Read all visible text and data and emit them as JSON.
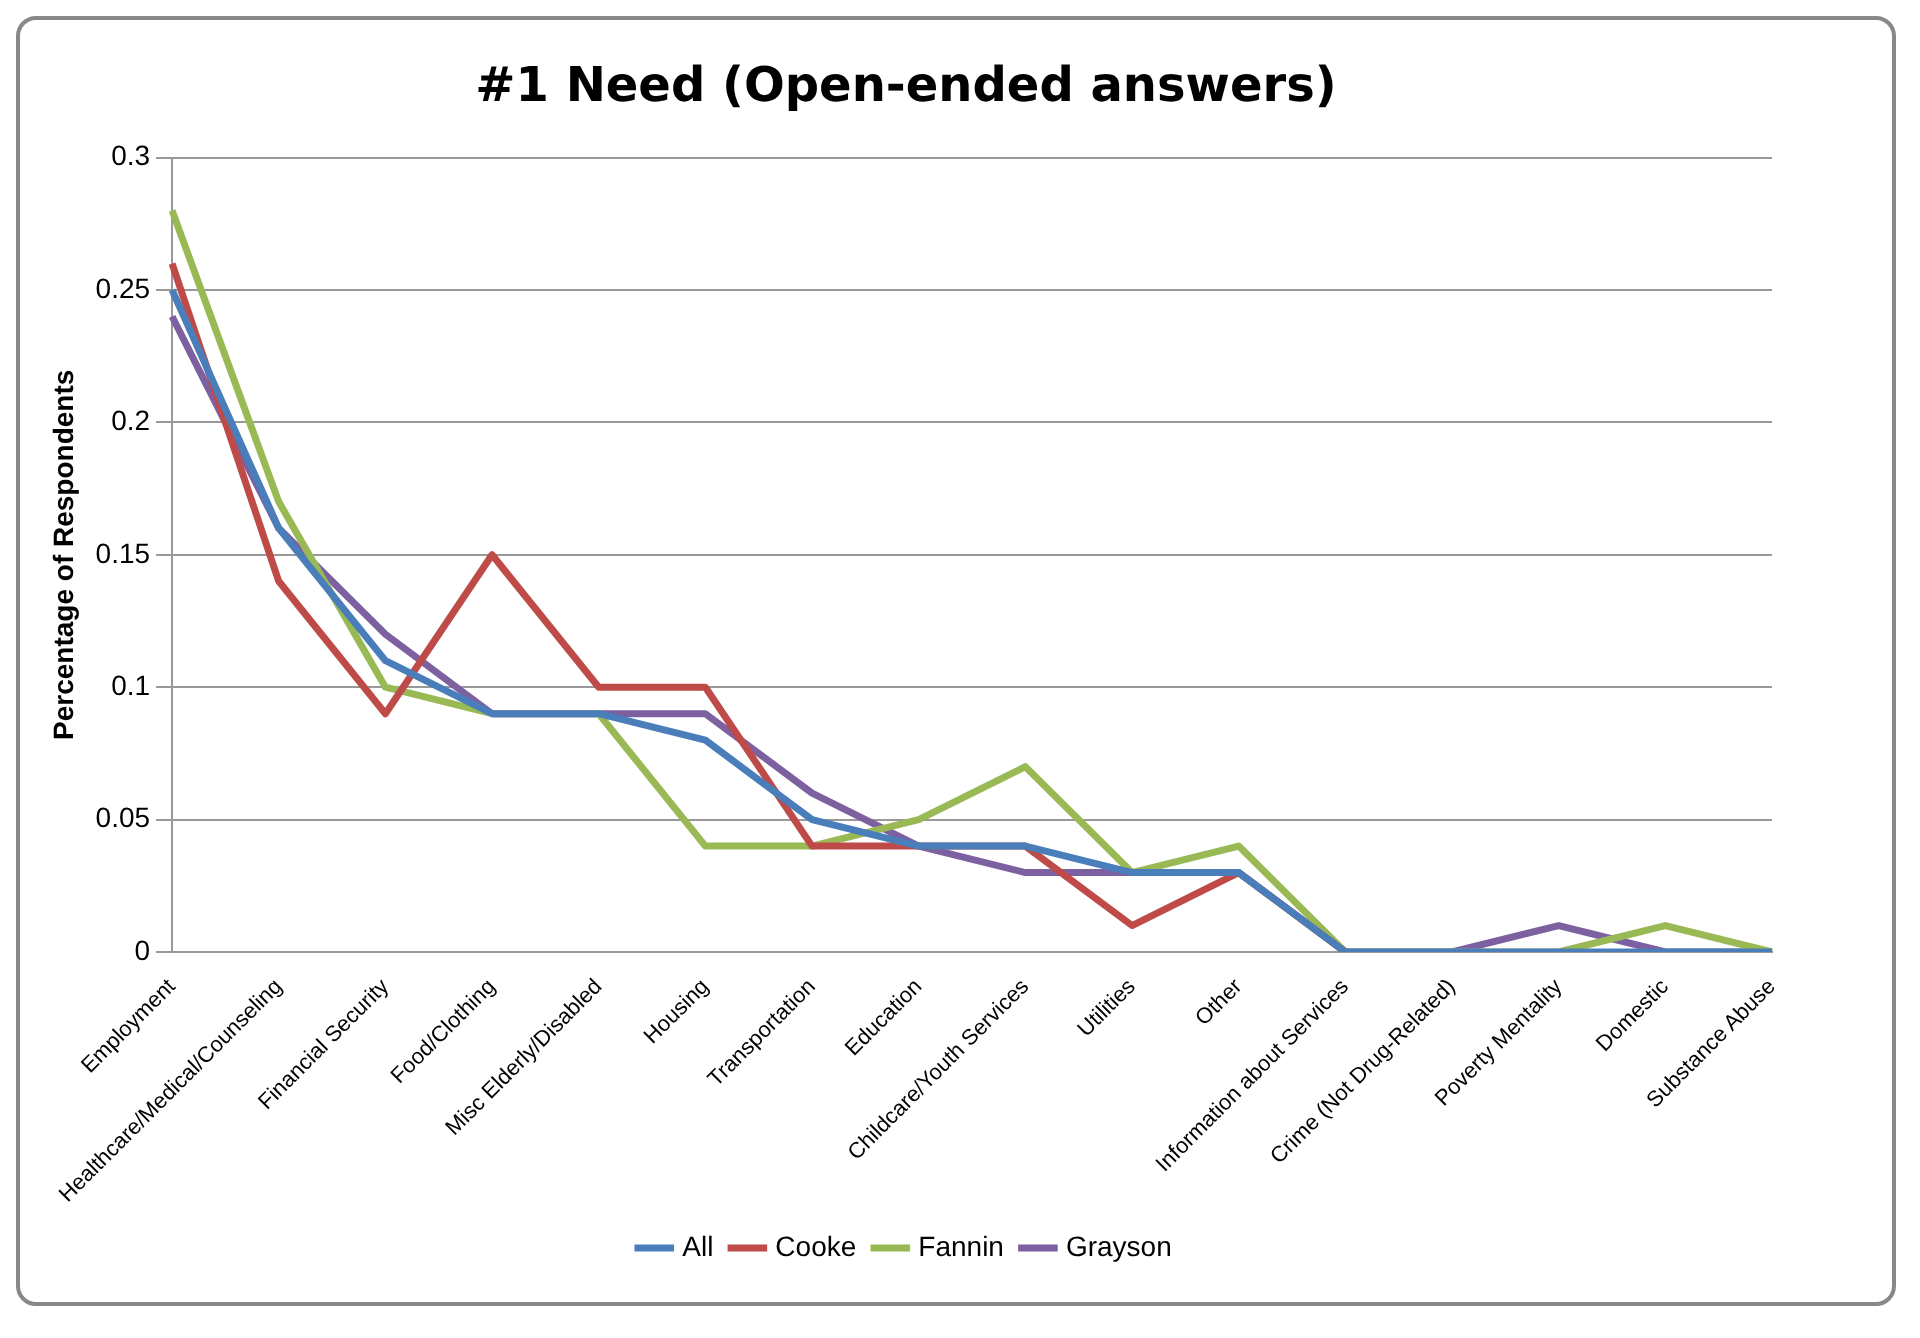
{
  "chart_data": {
    "type": "line",
    "title": "#1 Need (Open-ended answers)",
    "ylabel": "Percentage of Respondents",
    "categories": [
      "Employment",
      "Healthcare/Medical/Counseling",
      "Financial Security",
      "Food/Clothing",
      "Misc Elderly/Disabled",
      "Housing",
      "Transportation",
      "Education",
      "Childcare/Youth Services",
      "Utilities",
      "Other",
      "Information about Services",
      "Crime (Not Drug-Related)",
      "Poverty Mentality",
      "Domestic",
      "Substance Abuse"
    ],
    "series": [
      {
        "name": "All",
        "color": "#4a7ebb",
        "values": [
          0.25,
          0.16,
          0.11,
          0.09,
          0.09,
          0.08,
          0.05,
          0.04,
          0.04,
          0.03,
          0.03,
          0,
          0,
          0,
          0,
          0
        ]
      },
      {
        "name": "Cooke",
        "color": "#be4b48",
        "values": [
          0.26,
          0.14,
          0.09,
          0.15,
          0.1,
          0.1,
          0.04,
          0.04,
          0.04,
          0.01,
          0.03,
          0,
          null,
          null,
          null,
          null
        ]
      },
      {
        "name": "Fannin",
        "color": "#98b954",
        "values": [
          0.28,
          0.17,
          0.1,
          0.09,
          0.09,
          0.04,
          0.04,
          0.05,
          0.07,
          0.03,
          0.04,
          0,
          0,
          0,
          0.01,
          0
        ]
      },
      {
        "name": "Grayson",
        "color": "#7d60a0",
        "values": [
          0.24,
          0.16,
          0.12,
          0.09,
          0.09,
          0.09,
          0.06,
          0.04,
          0.03,
          0.03,
          0.03,
          0,
          0,
          0.01,
          0,
          0
        ]
      }
    ],
    "ylim": [
      0,
      0.3
    ],
    "yticks": [
      0,
      0.05,
      0.1,
      0.15,
      0.2,
      0.25,
      0.3
    ],
    "grid": "y",
    "legend": "bottom",
    "marker": "none",
    "line_style": "solid"
  }
}
